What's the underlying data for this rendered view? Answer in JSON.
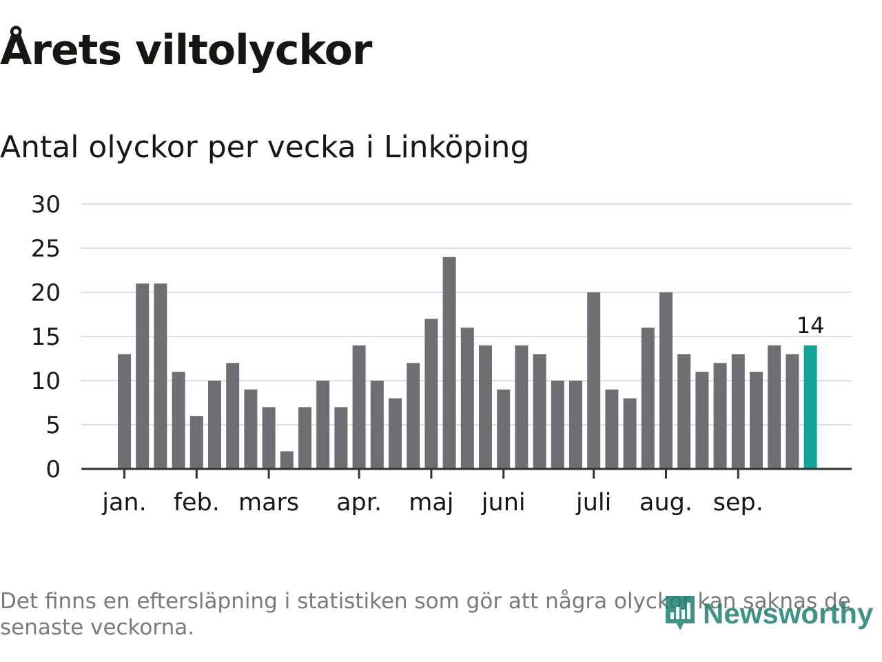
{
  "title": "Årets viltolyckor",
  "subtitle": "Antal olyckor per vecka i Linköping",
  "footnote": "Det finns en eftersläpning i statistiken som gör att några olyckor kan saknas de senaste veckorna.",
  "logo": {
    "text": "Newsworthy",
    "icon": "bar-chart-badge-icon"
  },
  "colors": {
    "bar": "#6f6e73",
    "highlight": "#10a39a",
    "grid": "#dddddd",
    "axis": "#333333",
    "text": "#161713",
    "footnote": "#7a7a7a",
    "logo": "#1f7f73"
  },
  "chart_data": {
    "type": "bar",
    "title": "Årets viltolyckor",
    "subtitle": "Antal olyckor per vecka i Linköping",
    "xlabel": "",
    "ylabel": "",
    "ylim": [
      0,
      30
    ],
    "yticks": [
      0,
      5,
      10,
      15,
      20,
      25,
      30
    ],
    "grid": true,
    "values": [
      13,
      21,
      21,
      11,
      6,
      10,
      12,
      9,
      7,
      2,
      7,
      10,
      7,
      14,
      10,
      8,
      12,
      17,
      24,
      16,
      14,
      9,
      14,
      13,
      10,
      10,
      20,
      9,
      8,
      16,
      20,
      13,
      11,
      12,
      13,
      11,
      14,
      13,
      14
    ],
    "highlight_index": 38,
    "highlight_label": "14",
    "month_labels": [
      {
        "label": "jan.",
        "week": 0
      },
      {
        "label": "feb.",
        "week": 4
      },
      {
        "label": "mars",
        "week": 8
      },
      {
        "label": "apr.",
        "week": 13
      },
      {
        "label": "maj",
        "week": 17
      },
      {
        "label": "juni",
        "week": 21
      },
      {
        "label": "juli",
        "week": 26
      },
      {
        "label": "aug.",
        "week": 30
      },
      {
        "label": "sep.",
        "week": 34
      }
    ]
  }
}
